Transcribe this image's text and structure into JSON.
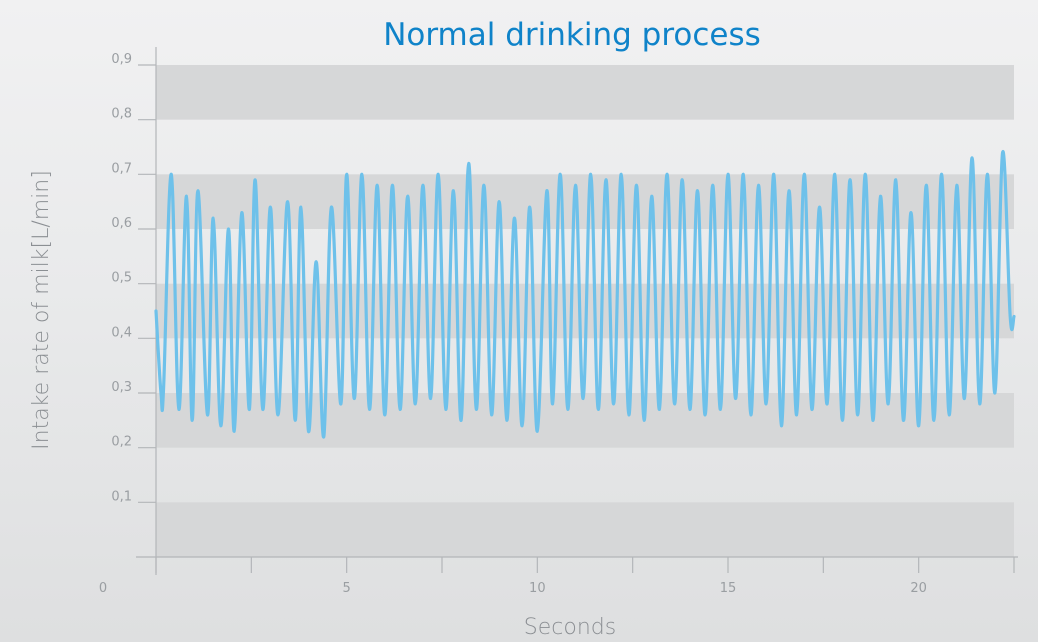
{
  "chart_data": {
    "type": "line",
    "title": "Normal drinking process",
    "xlabel": "Seconds",
    "ylabel": "Intake rate of milk[L/min]",
    "xlim": [
      0,
      22.5
    ],
    "ylim": [
      0,
      0.9
    ],
    "x_ticks": [
      0,
      2.5,
      5,
      7.5,
      10,
      12.5,
      15,
      17.5,
      20,
      22.5
    ],
    "x_tick_labels": [
      "0",
      "",
      "5",
      "",
      "10",
      "",
      "15",
      "",
      "20",
      ""
    ],
    "y_ticks": [
      0.1,
      0.2,
      0.3,
      0.4,
      0.5,
      0.6,
      0.7,
      0.8,
      0.9
    ],
    "y_tick_labels": [
      "0,1",
      "0,2",
      "0,3",
      "0,4",
      "0,5",
      "0,6",
      "0,7",
      "0,8",
      "0,9"
    ],
    "grid": "alternating horizontal bands",
    "legend": "none",
    "series": [
      {
        "color": "#6ec1ea",
        "x": [
          0.0,
          0.13,
          0.2,
          0.4,
          0.6,
          0.8,
          0.95,
          1.1,
          1.35,
          1.5,
          1.7,
          1.9,
          2.05,
          2.25,
          2.45,
          2.6,
          2.8,
          3.0,
          3.2,
          3.45,
          3.65,
          3.8,
          4.0,
          4.2,
          4.4,
          4.6,
          4.85,
          5.0,
          5.2,
          5.4,
          5.6,
          5.8,
          6.0,
          6.2,
          6.4,
          6.6,
          6.8,
          7.0,
          7.2,
          7.4,
          7.6,
          7.8,
          8.0,
          8.2,
          8.4,
          8.6,
          8.8,
          9.0,
          9.2,
          9.4,
          9.6,
          9.8,
          10.0,
          10.25,
          10.4,
          10.6,
          10.8,
          11.0,
          11.2,
          11.4,
          11.6,
          11.8,
          12.0,
          12.2,
          12.4,
          12.6,
          12.8,
          13.0,
          13.2,
          13.4,
          13.6,
          13.8,
          14.0,
          14.2,
          14.4,
          14.6,
          14.8,
          15.0,
          15.2,
          15.4,
          15.6,
          15.8,
          16.0,
          16.2,
          16.4,
          16.6,
          16.8,
          17.0,
          17.2,
          17.4,
          17.6,
          17.8,
          18.0,
          18.2,
          18.4,
          18.6,
          18.8,
          19.0,
          19.2,
          19.4,
          19.6,
          19.8,
          20.0,
          20.2,
          20.4,
          20.6,
          20.8,
          21.0,
          21.2,
          21.4,
          21.6,
          21.8,
          22.0,
          22.2,
          22.4,
          22.5
        ],
        "y": [
          0.45,
          0.3,
          0.31,
          0.7,
          0.27,
          0.66,
          0.25,
          0.67,
          0.26,
          0.62,
          0.24,
          0.6,
          0.23,
          0.63,
          0.27,
          0.69,
          0.27,
          0.64,
          0.26,
          0.65,
          0.25,
          0.64,
          0.23,
          0.54,
          0.22,
          0.64,
          0.28,
          0.7,
          0.29,
          0.7,
          0.27,
          0.68,
          0.26,
          0.68,
          0.27,
          0.66,
          0.28,
          0.68,
          0.29,
          0.7,
          0.27,
          0.67,
          0.25,
          0.72,
          0.27,
          0.68,
          0.26,
          0.65,
          0.25,
          0.62,
          0.24,
          0.64,
          0.23,
          0.67,
          0.28,
          0.7,
          0.27,
          0.68,
          0.29,
          0.7,
          0.27,
          0.69,
          0.28,
          0.7,
          0.26,
          0.68,
          0.25,
          0.66,
          0.27,
          0.7,
          0.28,
          0.69,
          0.27,
          0.67,
          0.26,
          0.68,
          0.27,
          0.7,
          0.29,
          0.7,
          0.26,
          0.68,
          0.28,
          0.7,
          0.24,
          0.67,
          0.26,
          0.7,
          0.27,
          0.64,
          0.28,
          0.7,
          0.25,
          0.69,
          0.26,
          0.7,
          0.25,
          0.66,
          0.28,
          0.69,
          0.25,
          0.63,
          0.24,
          0.68,
          0.25,
          0.7,
          0.26,
          0.68,
          0.29,
          0.73,
          0.28,
          0.7,
          0.3,
          0.74,
          0.44,
          0.44
        ]
      }
    ]
  }
}
